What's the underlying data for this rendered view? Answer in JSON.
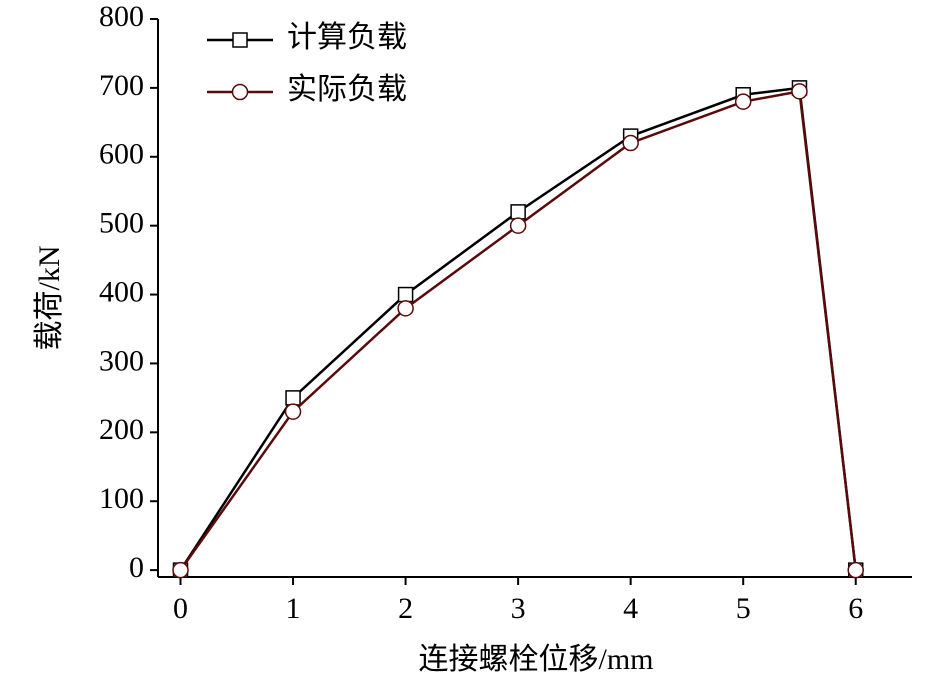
{
  "chart_data": {
    "type": "line",
    "x_label": "连接螺栓位移/mm",
    "y_label": "载荷/kN",
    "x": [
      0,
      1,
      2,
      3,
      4,
      5,
      5.5,
      6
    ],
    "series": [
      {
        "name": "计算负载",
        "color": "#000000",
        "marker": "square",
        "values": [
          0,
          250,
          400,
          520,
          630,
          690,
          700,
          0
        ]
      },
      {
        "name": "实际负载",
        "color": "#5a0a0a",
        "marker": "circle",
        "values": [
          0,
          230,
          380,
          500,
          620,
          680,
          695,
          0
        ]
      }
    ],
    "xlim": [
      -0.2,
      6.5
    ],
    "xticks": [
      0,
      1,
      2,
      3,
      4,
      5,
      6
    ],
    "ylim": [
      -10,
      800
    ],
    "yticks": [
      0,
      100,
      200,
      300,
      400,
      500,
      600,
      700,
      800
    ],
    "legend": "upper left"
  }
}
